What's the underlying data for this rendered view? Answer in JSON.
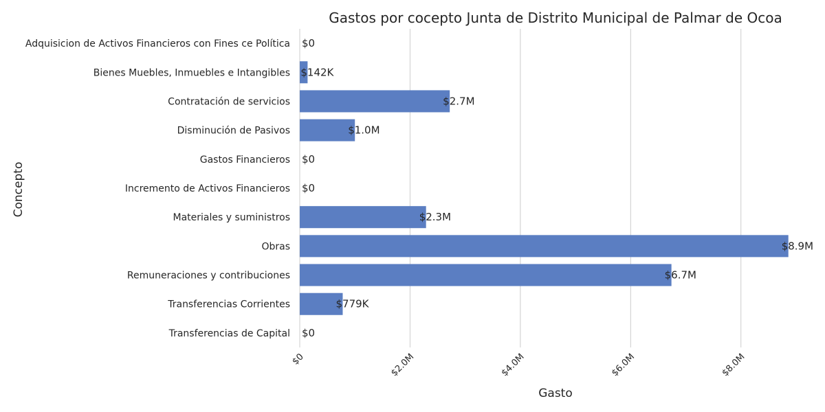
{
  "chart_data": {
    "type": "bar",
    "orientation": "horizontal",
    "title": "Gastos por cocepto Junta de Distrito Municipal de Palmar de Ocoa",
    "xlabel": "Gasto",
    "ylabel": "Concepto",
    "categories": [
      "Adquisicion de Activos Financieros con Fines ce Política",
      "Bienes Muebles, Inmuebles e Intangibles",
      "Contratación de servicios",
      "Disminución de Pasivos",
      "Gastos Financieros",
      "Incremento de Activos Financieros",
      "Materiales y suministros",
      "Obras",
      "Remuneraciones y contribuciones",
      "Transferencias Corrientes",
      "Transferencias de Capital"
    ],
    "values": [
      0,
      142000,
      2720000,
      1000000,
      0,
      0,
      2290000,
      8860000,
      6740000,
      779000,
      0
    ],
    "data_labels": [
      "$0",
      "$142K",
      "$2.7M",
      "$1.0M",
      "$0",
      "$0",
      "$2.3M",
      "$8.9M",
      "$6.7M",
      "$779K",
      "$0"
    ],
    "xticks": [
      0,
      2000000,
      4000000,
      6000000,
      8000000
    ],
    "xtick_labels": [
      "$0",
      "$2.0M",
      "$4.0M",
      "$6.0M",
      "$8.0M"
    ],
    "xlim": [
      0,
      9300000
    ],
    "grid": true,
    "bar_color": "#5b7ec2"
  }
}
